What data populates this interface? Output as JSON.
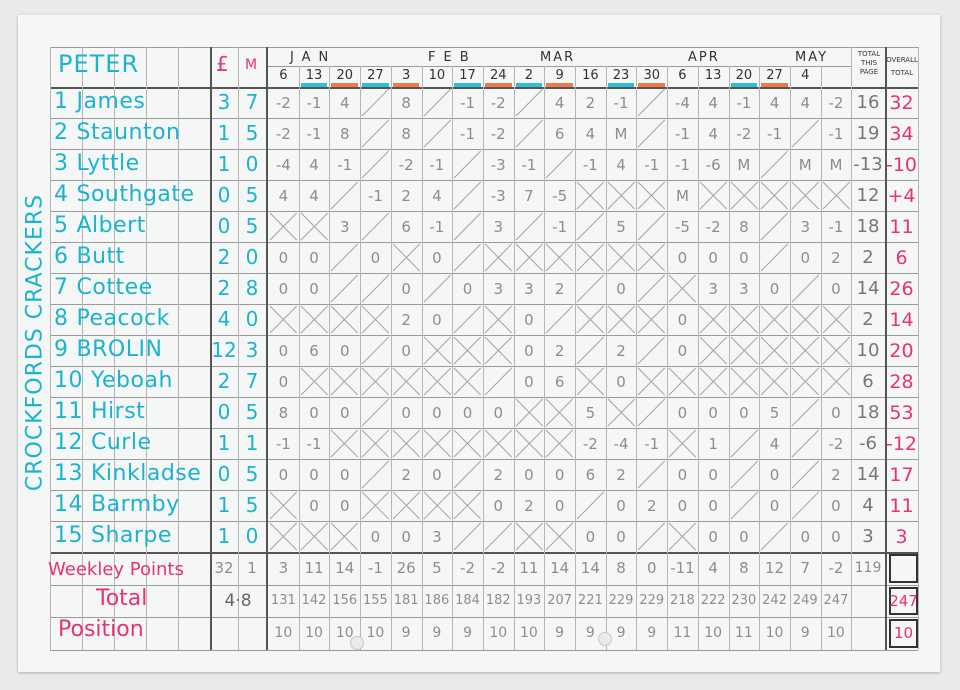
{
  "sheet": {
    "owner": "PETER",
    "team_name": "CROCKFORDS CRACKERS",
    "price_headers": [
      "£",
      "M"
    ],
    "months": [
      "JAN",
      "FEB",
      "MAR",
      "APR",
      "MAY"
    ],
    "weeks": [
      "6",
      "13",
      "20",
      "27",
      "3",
      "10",
      "17",
      "24",
      "2",
      "9",
      "16",
      "23",
      "30",
      "6",
      "13",
      "20",
      "27",
      "4",
      ""
    ],
    "total_this_page_label": "TOTAL THIS PAGE",
    "overall_total_label": "OVERALL TOTAL",
    "week_markers": [
      null,
      "blue",
      "orange",
      "blue",
      "orange",
      null,
      "blue",
      "orange",
      "blue",
      "orange",
      null,
      "blue",
      "orange",
      null,
      null,
      "blue",
      "orange",
      null,
      null
    ],
    "colors": {
      "ink_cyan": "#1cb3cf",
      "ink_pink": "#e8336b",
      "pencil": "#8c8e8e",
      "marker_blue": "#2fc0d8",
      "marker_orange": "#f07a4a"
    }
  },
  "players": [
    {
      "num": "1",
      "name": "James",
      "price": [
        "3",
        "7"
      ],
      "scores": [
        "-2",
        "-1",
        "4",
        "/",
        "8",
        "/",
        "-1",
        "-2",
        "/",
        "4",
        "2",
        "-1",
        "/",
        "-4",
        "4",
        "-1",
        "4",
        "4",
        "-2"
      ],
      "page_total": "16",
      "overall": "32"
    },
    {
      "num": "2",
      "name": "Staunton",
      "price": [
        "1",
        "5"
      ],
      "scores": [
        "-2",
        "-1",
        "8",
        "/",
        "8",
        "/",
        "-1",
        "-2",
        "/",
        "6",
        "4",
        "M",
        "/",
        "-1",
        "4",
        "-2",
        "-1",
        "/",
        "-1"
      ],
      "page_total": "19",
      "overall": "34"
    },
    {
      "num": "3",
      "name": "Lyttle",
      "price": [
        "1",
        "0"
      ],
      "scores": [
        "-4",
        "4",
        "-1",
        "/",
        "-2",
        "-1",
        "/",
        "-3",
        "-1",
        "/",
        "-1",
        "4",
        "-1",
        "-1",
        "-6",
        "M",
        "/",
        "M",
        "M"
      ],
      "page_total": "-13",
      "overall": "-10"
    },
    {
      "num": "4",
      "name": "Southgate",
      "price": [
        "0",
        "5"
      ],
      "scores": [
        "4",
        "4",
        "/",
        "-1",
        "2",
        "4",
        "/",
        "-3",
        "7",
        "-5",
        "X",
        "X",
        "X",
        "M",
        "X",
        "X",
        "X",
        "X",
        "X"
      ],
      "page_total": "12",
      "overall": "+4"
    },
    {
      "num": "5",
      "name": "Albert",
      "price": [
        "0",
        "5"
      ],
      "scores": [
        "X",
        "X",
        "3",
        "/",
        "6",
        "-1",
        "/",
        "3",
        "/",
        "-1",
        "/",
        "5",
        "/",
        "-5",
        "-2",
        "8",
        "/",
        "3",
        "-1"
      ],
      "page_total": "18",
      "overall": "11"
    },
    {
      "num": "6",
      "name": "Butt",
      "price": [
        "2",
        "0"
      ],
      "scores": [
        "0",
        "0",
        "/",
        "0",
        "X",
        "0",
        "/",
        "X",
        "X",
        "X",
        "X",
        "X",
        "X",
        "0",
        "0",
        "0",
        "/",
        "0",
        "2"
      ],
      "page_total": "2",
      "overall": "6"
    },
    {
      "num": "7",
      "name": "Cottee",
      "price": [
        "2",
        "8"
      ],
      "scores": [
        "0",
        "0",
        "/",
        "/",
        "0",
        "/",
        "0",
        "3",
        "3",
        "2",
        "/",
        "0",
        "/",
        "X",
        "3",
        "3",
        "0",
        "/",
        "0"
      ],
      "page_total": "14",
      "overall": "26"
    },
    {
      "num": "8",
      "name": "Peacock",
      "price": [
        "4",
        "0"
      ],
      "scores": [
        "X",
        "X",
        "X",
        "X",
        "2",
        "0",
        "/",
        "X",
        "0",
        "/",
        "X",
        "X",
        "X",
        "0",
        "X",
        "X",
        "X",
        "X",
        "X"
      ],
      "page_total": "2",
      "overall": "14"
    },
    {
      "num": "9",
      "name": "BROLIN",
      "price": [
        "12",
        "3"
      ],
      "scores": [
        "0",
        "6",
        "0",
        "/",
        "0",
        "X",
        "X",
        "X",
        "0",
        "2",
        "/",
        "2",
        "/",
        "0",
        "X",
        "X",
        "X",
        "X",
        "X"
      ],
      "page_total": "10",
      "overall": "20"
    },
    {
      "num": "10",
      "name": "Yeboah",
      "price": [
        "2",
        "7"
      ],
      "scores": [
        "0",
        "X",
        "X",
        "X",
        "X",
        "X",
        "X",
        "/",
        "0",
        "6",
        "X",
        "0",
        "X",
        "X",
        "X",
        "X",
        "X",
        "X",
        "X"
      ],
      "page_total": "6",
      "overall": "28"
    },
    {
      "num": "11",
      "name": "Hirst",
      "price": [
        "0",
        "5"
      ],
      "scores": [
        "8",
        "0",
        "0",
        "/",
        "0",
        "0",
        "0",
        "0",
        "X",
        "X",
        "5",
        "X",
        "/",
        "0",
        "0",
        "0",
        "5",
        "/",
        "0"
      ],
      "page_total": "18",
      "overall": "53"
    },
    {
      "num": "12",
      "name": "Curle",
      "price": [
        "1",
        "1"
      ],
      "scores": [
        "-1",
        "-1",
        "X",
        "X",
        "X",
        "X",
        "X",
        "X",
        "X",
        "X",
        "-2",
        "-4",
        "-1",
        "X",
        "1",
        "/",
        "4",
        "/",
        "-2"
      ],
      "page_total": "-6",
      "overall": "-12"
    },
    {
      "num": "13",
      "name": "Kinkladse",
      "price": [
        "0",
        "5"
      ],
      "scores": [
        "0",
        "0",
        "0",
        "/",
        "2",
        "0",
        "/",
        "2",
        "0",
        "0",
        "6",
        "2",
        "/",
        "0",
        "0",
        "/",
        "0",
        "/",
        "2"
      ],
      "page_total": "14",
      "overall": "17"
    },
    {
      "num": "14",
      "name": "Barmby",
      "price": [
        "1",
        "5"
      ],
      "scores": [
        "X",
        "0",
        "0",
        "X",
        "X",
        "X",
        "X",
        "0",
        "2",
        "0",
        "/",
        "0",
        "2",
        "0",
        "0",
        "/",
        "0",
        "/",
        "0"
      ],
      "page_total": "4",
      "overall": "11"
    },
    {
      "num": "15",
      "name": "Sharpe",
      "price": [
        "1",
        "0"
      ],
      "scores": [
        "X",
        "X",
        "X",
        "0",
        "0",
        "3",
        "/",
        "/",
        "X",
        "X",
        "0",
        "0",
        "/",
        "X",
        "0",
        "0",
        "/",
        "0",
        "0"
      ],
      "page_total": "3",
      "overall": "3"
    }
  ],
  "summary": {
    "weekly_label": "Weekley Points",
    "total_label": "Total",
    "position_label": "Position",
    "weekly_price": [
      "32",
      "1"
    ],
    "total_price": "4·8",
    "weekly_points": [
      "3",
      "11",
      "14",
      "-1",
      "26",
      "5",
      "-2",
      "-2",
      "11",
      "14",
      "14",
      "8",
      "0",
      "-11",
      "4",
      "8",
      "12",
      "7",
      "-2"
    ],
    "weekly_page_total": "119",
    "totals": [
      "131",
      "142",
      "156",
      "155",
      "181",
      "186",
      "184",
      "182",
      "193",
      "207",
      "221",
      "229",
      "229",
      "218",
      "222",
      "230",
      "242",
      "249",
      "247"
    ],
    "overall_total": "247",
    "positions": [
      "10",
      "10",
      "10",
      "10",
      "9",
      "9",
      "9",
      "10",
      "10",
      "9",
      "9",
      "9",
      "9",
      "11",
      "10",
      "11",
      "10",
      "9",
      "10"
    ],
    "overall_position": "10"
  }
}
